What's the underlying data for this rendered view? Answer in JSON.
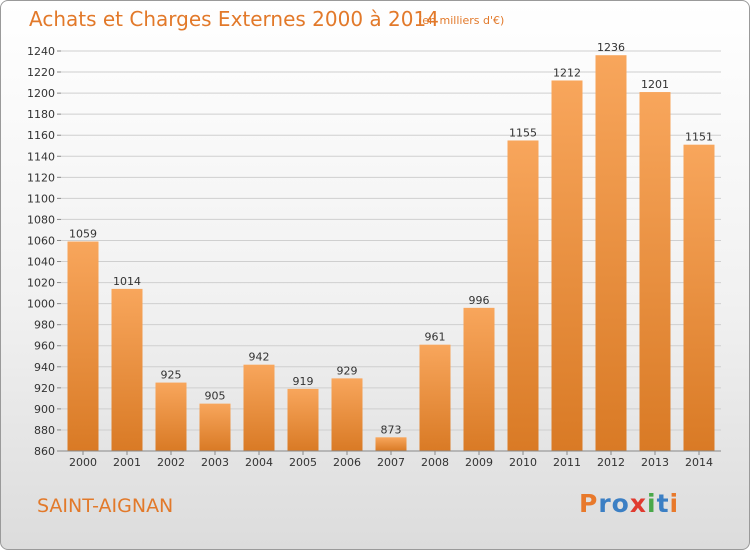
{
  "header": {
    "title": "Achats et Charges Externes 2000 à 2014",
    "subtitle": "(en milliers d'€)"
  },
  "footer": {
    "location": "SAINT-AIGNAN",
    "brand": "Proxiti",
    "brand_colors": [
      "#e8792b",
      "#3b7fc4",
      "#3b7fc4",
      "#e03a2f",
      "#4aa84a",
      "#3b7fc4",
      "#e8792b"
    ]
  },
  "colors": {
    "bar_light": "#f8a65c",
    "bar_dark": "#d97a25",
    "text_accent": "#e2792a"
  },
  "chart_data": {
    "type": "bar",
    "categories": [
      "2000",
      "2001",
      "2002",
      "2003",
      "2004",
      "2005",
      "2006",
      "2007",
      "2008",
      "2009",
      "2010",
      "2011",
      "2012",
      "2013",
      "2014"
    ],
    "values": [
      1059,
      1014,
      925,
      905,
      942,
      919,
      929,
      873,
      961,
      996,
      1155,
      1212,
      1236,
      1201,
      1151
    ],
    "data_labels": [
      "1059",
      "1014",
      "925",
      "905",
      "942",
      "919",
      "929",
      "873",
      "961",
      "996",
      "1155",
      "1212",
      "1236",
      "1201",
      "1151"
    ],
    "ylim": [
      860,
      1240
    ],
    "yticks": [
      860,
      880,
      900,
      920,
      940,
      960,
      980,
      1000,
      1020,
      1040,
      1060,
      1080,
      1100,
      1120,
      1140,
      1160,
      1180,
      1200,
      1220,
      1240
    ],
    "grid": true
  }
}
